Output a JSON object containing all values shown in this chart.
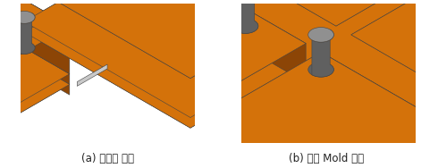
{
  "figure_width": 4.9,
  "figure_height": 1.88,
  "dpi": 100,
  "background_color": "#ffffff",
  "caption_a": "(a) 대각선 가열",
  "caption_b": "(b) 입점 Mold 가열",
  "caption_fontsize": 8.5,
  "caption_color": "#222222",
  "mold_top": "#d4720a",
  "mold_left": "#b05c08",
  "mold_right": "#8c4506",
  "mold_front": "#a05507",
  "part_light": "#e8e8e8",
  "part_mid": "#c8c8c8",
  "part_dark": "#a8a8a8",
  "part_hole": "#888888",
  "pin_top": "#909090",
  "pin_side": "#606060",
  "outline": "#444444"
}
